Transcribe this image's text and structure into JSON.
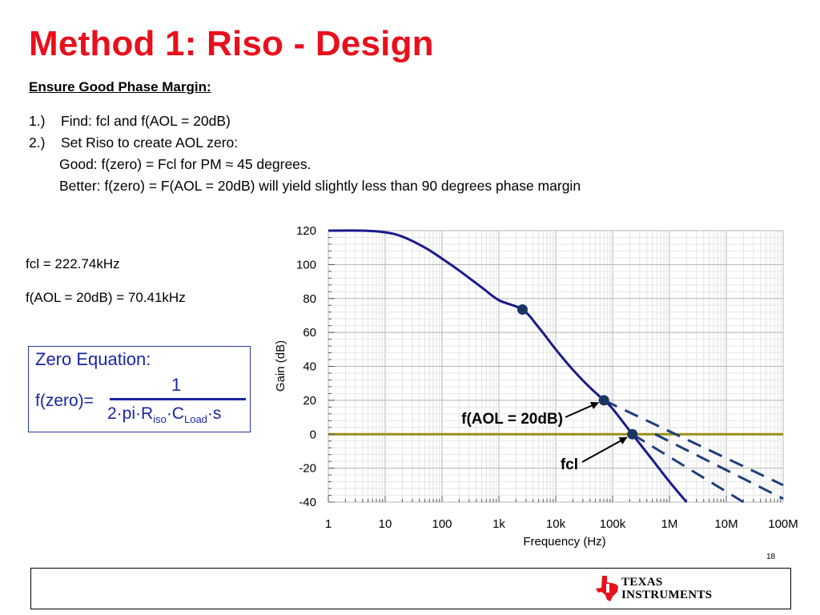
{
  "slide": {
    "title": "Method 1:  Riso - Design",
    "subtitle": "Ensure Good Phase Margin:",
    "steps": [
      {
        "num": "1.)",
        "text": "Find:  fcl and f(AOL = 20dB)"
      },
      {
        "num": "2.)",
        "text": "Set Riso to create AOL zero:"
      }
    ],
    "good": "Good:   f(zero) = Fcl for PM ≈ 45 degrees.",
    "better": "Better:  f(zero) = F(AOL = 20dB) will yield slightly less than 90 degrees phase margin",
    "results": [
      "fcl = 222.74kHz",
      "f(AOL = 20dB) = 70.41kHz"
    ],
    "equation": {
      "heading": "Zero Equation:",
      "lhs": "f(zero)=",
      "numerator": "1",
      "den_prefix": "2·pi·R",
      "den_sub1": "iso",
      "den_mid": "·C",
      "den_sub2": "Load",
      "den_suffix": "·s"
    },
    "slide_number": "18",
    "logo": {
      "line1": "TEXAS",
      "line2": "INSTRUMENTS",
      "icon": "texas-state-outline-icon",
      "color": "#e8101c"
    }
  },
  "chart_data": {
    "type": "line",
    "xscale": "log",
    "xlim": [
      1,
      100000000
    ],
    "ylim": [
      -40,
      120
    ],
    "xlabel": "Frequency (Hz)",
    "ylabel": "Gain (dB)",
    "xticks": [
      {
        "value": 1,
        "label": "1"
      },
      {
        "value": 10,
        "label": "10"
      },
      {
        "value": 100,
        "label": "100"
      },
      {
        "value": 1000,
        "label": "1k"
      },
      {
        "value": 10000,
        "label": "10k"
      },
      {
        "value": 100000,
        "label": "100k"
      },
      {
        "value": 1000000,
        "label": "1M"
      },
      {
        "value": 10000000,
        "label": "10M"
      },
      {
        "value": 100000000,
        "label": "100M"
      }
    ],
    "yticks": [
      120,
      100,
      80,
      60,
      40,
      20,
      0,
      -20,
      -40
    ],
    "grid": true,
    "colors": {
      "aol": "#1a1a8c",
      "zero_line": "#9a8f1a",
      "dashed": "#1e3f7a",
      "marker": "#1a3560"
    },
    "series": [
      {
        "style": "solid",
        "points": [
          [
            1,
            120
          ],
          [
            4,
            120
          ],
          [
            10,
            119
          ],
          [
            20,
            116.5
          ],
          [
            50,
            110
          ],
          [
            100,
            103.5
          ],
          [
            200,
            96.5
          ],
          [
            500,
            86.5
          ],
          [
            1000,
            79
          ],
          [
            2600,
            73.5
          ],
          [
            5000,
            63
          ],
          [
            10000,
            50
          ],
          [
            20000,
            38
          ],
          [
            40000,
            27.5
          ],
          [
            70410,
            20
          ],
          [
            100000,
            15
          ],
          [
            222740,
            0
          ],
          [
            500000,
            -15
          ],
          [
            1000000,
            -28
          ],
          [
            2000000,
            -40
          ]
        ]
      },
      {
        "style": "solid",
        "points": [
          [
            1,
            0
          ],
          [
            100000000,
            0
          ]
        ]
      },
      {
        "style": "dashed",
        "points": [
          [
            70410,
            20
          ],
          [
            100000000,
            -30
          ]
        ]
      },
      {
        "style": "dashed",
        "points": [
          [
            222740,
            0
          ],
          [
            20000000,
            -40
          ]
        ]
      },
      {
        "style": "dashed",
        "points": [
          [
            560000,
            0
          ],
          [
            100000000,
            -38
          ]
        ]
      }
    ],
    "markers": [
      {
        "x": 2600,
        "y": 73.5
      },
      {
        "x": 70410,
        "y": 20
      },
      {
        "x": 222740,
        "y": 0
      }
    ],
    "annotations": [
      {
        "text": "f(AOL = 20dB)",
        "x": 70410,
        "y": 20
      },
      {
        "text": "fcl",
        "x": 222740,
        "y": 0
      }
    ]
  }
}
